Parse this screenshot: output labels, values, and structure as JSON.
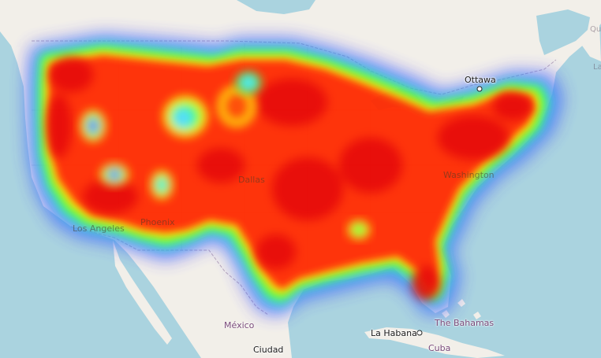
{
  "map": {
    "colors": {
      "water": "#aad3df",
      "land": "#f2efe9",
      "border": "#b9a8b9",
      "heat_cold": "#0000ff",
      "heat_cool": "#00ffff",
      "heat_mid": "#00ff00",
      "heat_warm": "#ffff00",
      "heat_hot": "#ff0000"
    },
    "labels": {
      "ottawa": "Ottawa",
      "los_angeles": "Los Angeles",
      "phoenix": "Phoenix",
      "dallas": "Dallas",
      "washington": "Washington",
      "mexico": "México",
      "ciudad": "Ciudad",
      "la_habana": "La Habana",
      "cuba": "Cuba",
      "bahamas": "The Bahamas"
    }
  }
}
